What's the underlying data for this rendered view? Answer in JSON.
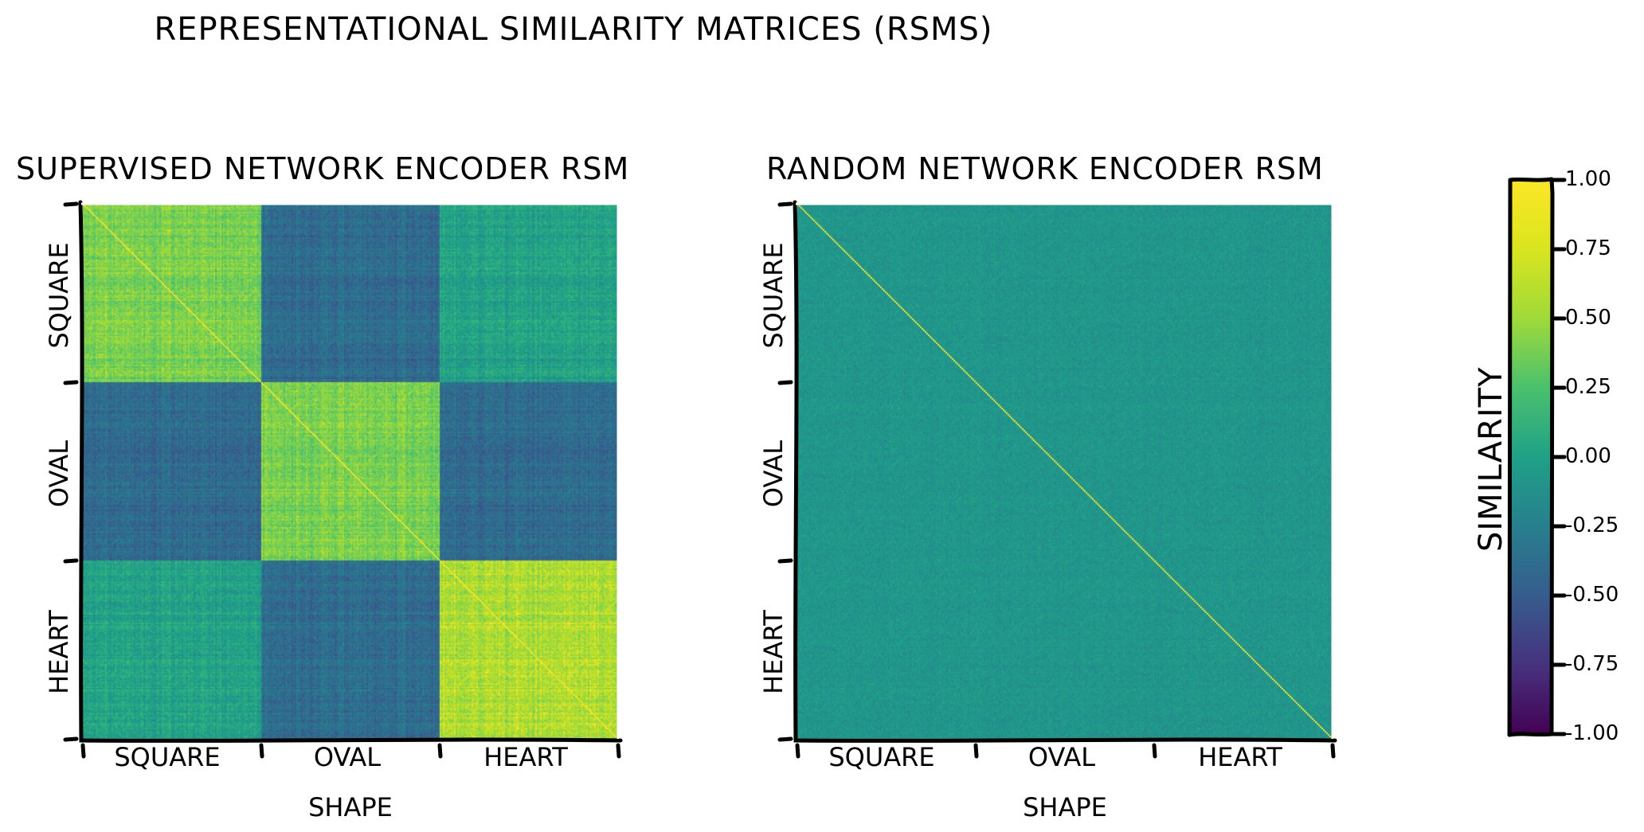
{
  "title": "REPRESENTATIONAL SIMILARITY MATRICES (RSMS)",
  "chart_data": [
    {
      "type": "heatmap",
      "title": "SUPERVISED NETWORK ENCODER RSM",
      "xlabel": "SHAPE",
      "ylabel": "",
      "categories": [
        "SQUARE",
        "OVAL",
        "HEART"
      ],
      "colormap": "viridis",
      "vmin": -1.0,
      "vmax": 1.0,
      "block_similarity": [
        [
          0.6,
          -0.3,
          0.15
        ],
        [
          -0.3,
          0.6,
          -0.3
        ],
        [
          0.15,
          -0.3,
          0.75
        ]
      ],
      "diagonal": 1.0
    },
    {
      "type": "heatmap",
      "title": "RANDOM NETWORK ENCODER RSM",
      "xlabel": "SHAPE",
      "ylabel": "",
      "categories": [
        "SQUARE",
        "OVAL",
        "HEART"
      ],
      "colormap": "viridis",
      "vmin": -1.0,
      "vmax": 1.0,
      "block_similarity": [
        [
          0.05,
          0.05,
          0.05
        ],
        [
          0.05,
          0.05,
          0.05
        ],
        [
          0.05,
          0.05,
          0.05
        ]
      ],
      "diagonal": 1.0
    }
  ],
  "colorbar": {
    "label": "SIMILARITY",
    "ticks": [
      "1.00",
      "0.75",
      "0.50",
      "0.25",
      "0.00",
      "-0.25",
      "-0.50",
      "-0.75",
      "-1.00"
    ],
    "tick_values": [
      1.0,
      0.75,
      0.5,
      0.25,
      0.0,
      -0.25,
      -0.5,
      -0.75,
      -1.0
    ]
  }
}
